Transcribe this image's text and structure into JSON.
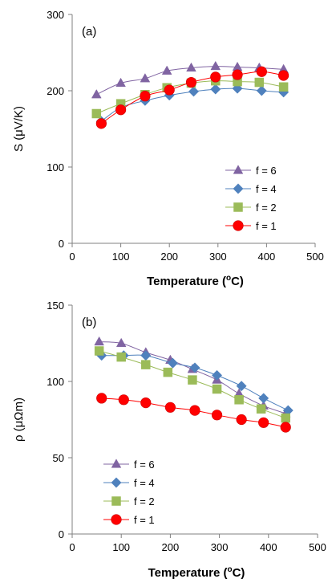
{
  "chart_data": [
    {
      "type": "line",
      "panel_label": "(a)",
      "xlabel": "Temperature (",
      "xlabel_sup": "o",
      "xlabel_tail": "C)",
      "ylabel": "S (μV/K)",
      "xlim": [
        0,
        500
      ],
      "ylim": [
        0,
        300
      ],
      "xticks": [
        "0",
        "100",
        "200",
        "300",
        "400",
        "500"
      ],
      "yticks": [
        "0",
        "100",
        "200",
        "300"
      ],
      "legend_position": "bottom-right",
      "series": [
        {
          "name": "f = 6",
          "marker": "triangle",
          "color": "#8064A2",
          "x": [
            50,
            100,
            150,
            195,
            245,
            295,
            340,
            385,
            435
          ],
          "y": [
            195,
            210,
            216,
            226,
            230,
            232,
            231,
            230,
            228
          ]
        },
        {
          "name": "f = 4",
          "marker": "diamond",
          "color": "#4F81BD",
          "x": [
            60,
            100,
            150,
            200,
            250,
            295,
            340,
            390,
            435
          ],
          "y": [
            160,
            178,
            187,
            194,
            199,
            202,
            203,
            200,
            198
          ]
        },
        {
          "name": "f = 2",
          "marker": "square",
          "color": "#9BBB59",
          "x": [
            50,
            100,
            150,
            195,
            245,
            295,
            340,
            385,
            435
          ],
          "y": [
            170,
            183,
            195,
            204,
            210,
            213,
            212,
            211,
            205
          ]
        },
        {
          "name": "f = 1",
          "marker": "circle",
          "color": "#FF0000",
          "x": [
            60,
            100,
            150,
            200,
            245,
            295,
            340,
            390,
            435
          ],
          "y": [
            157,
            175,
            193,
            201,
            211,
            218,
            221,
            225,
            220
          ]
        }
      ]
    },
    {
      "type": "line",
      "panel_label": "(b)",
      "xlabel": "Temperature (",
      "xlabel_sup": "o",
      "xlabel_tail": "C)",
      "ylabel": "ρ (μΩm)",
      "xlim": [
        0,
        500
      ],
      "ylim": [
        0,
        150
      ],
      "xticks": [
        "0",
        "100",
        "200",
        "300",
        "400",
        "500"
      ],
      "yticks": [
        "0",
        "50",
        "100",
        "150"
      ],
      "legend_position": "bottom-left",
      "series": [
        {
          "name": "f = 6",
          "marker": "triangle",
          "color": "#8064A2",
          "x": [
            55,
            100,
            150,
            200,
            245,
            295,
            340,
            390,
            435
          ],
          "y": [
            126,
            125,
            119,
            114,
            108,
            101,
            92,
            84,
            79
          ]
        },
        {
          "name": "f = 4",
          "marker": "diamond",
          "color": "#4F81BD",
          "x": [
            60,
            105,
            150,
            205,
            250,
            295,
            345,
            390,
            440
          ],
          "y": [
            117,
            117,
            117,
            112,
            109,
            104,
            97,
            89,
            81
          ]
        },
        {
          "name": "f = 2",
          "marker": "square",
          "color": "#9BBB59",
          "x": [
            55,
            100,
            150,
            195,
            245,
            295,
            340,
            385,
            435
          ],
          "y": [
            120,
            116,
            111,
            106,
            101,
            95,
            88,
            82,
            76
          ]
        },
        {
          "name": "f = 1",
          "marker": "circle",
          "color": "#FF0000",
          "x": [
            60,
            105,
            150,
            200,
            250,
            295,
            345,
            390,
            435
          ],
          "y": [
            89,
            88,
            86,
            83,
            81,
            78,
            75,
            73,
            70
          ]
        }
      ]
    }
  ]
}
